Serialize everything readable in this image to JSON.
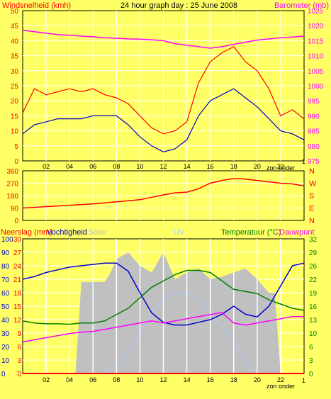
{
  "chart_data": [
    {
      "type": "line",
      "panel": "wind-barometer",
      "title": "24 hour graph day : 25 June 2008",
      "left_axis_label": "Windsnelheid (kmh)",
      "right_axis_label": "Barometer (mb)",
      "left_ylim": [
        0,
        50
      ],
      "left_ticks": [
        "0",
        "5",
        "10",
        "15",
        "20",
        "25",
        "30",
        "35",
        "40",
        "45",
        "50"
      ],
      "right_ylim": [
        975,
        1025
      ],
      "right_ticks": [
        "975",
        "980",
        "985",
        "990",
        "995",
        "1000",
        "1005",
        "1010",
        "1015",
        "1020",
        "1025"
      ],
      "x_ticks": [
        "02",
        "04",
        "06",
        "08",
        "10",
        "12",
        "14",
        "16",
        "18",
        "20",
        "22"
      ],
      "x_note": "zon onder",
      "x_end_label": "1",
      "colors": {
        "gust": "#ff0000",
        "average": "#0000cc",
        "barometer": "#ff00ff",
        "left_axis": "#ff0000",
        "right_axis": "#ff00ff"
      },
      "series": [
        {
          "key": "gust",
          "x": [
            0,
            1,
            2,
            3,
            4,
            5,
            6,
            7,
            8,
            9,
            10,
            11,
            12,
            13,
            14,
            15,
            16,
            17,
            18,
            19,
            20,
            21,
            22,
            23,
            24
          ],
          "values": [
            16,
            24,
            22,
            23,
            24,
            23,
            24,
            22,
            21,
            19,
            15,
            11,
            9,
            10,
            13,
            26,
            33,
            36,
            38,
            33,
            30,
            24,
            15,
            17,
            14
          ]
        },
        {
          "key": "average",
          "x": [
            0,
            1,
            2,
            3,
            4,
            5,
            6,
            7,
            8,
            9,
            10,
            11,
            12,
            13,
            14,
            15,
            16,
            17,
            18,
            19,
            20,
            21,
            22,
            23,
            24
          ],
          "values": [
            9,
            12,
            13,
            14,
            14,
            14,
            15,
            15,
            15,
            12,
            8,
            5,
            3,
            4,
            7,
            15,
            20,
            22,
            24,
            21,
            18,
            14,
            10,
            9,
            7
          ]
        },
        {
          "key": "barometer",
          "x": [
            0,
            1,
            2,
            3,
            4,
            5,
            6,
            7,
            8,
            9,
            10,
            11,
            12,
            13,
            14,
            15,
            16,
            17,
            18,
            19,
            20,
            21,
            22,
            23,
            24
          ],
          "values": [
            1018.5,
            1018,
            1017.5,
            1017,
            1016.8,
            1016.5,
            1016.3,
            1016,
            1015.8,
            1015.6,
            1015.5,
            1015.3,
            1015,
            1014,
            1013.5,
            1013,
            1012.5,
            1013,
            1013.8,
            1014.5,
            1015.2,
            1015.6,
            1016,
            1016.2,
            1016.5
          ]
        }
      ]
    },
    {
      "type": "line",
      "panel": "wind-direction",
      "ylim": [
        0,
        360
      ],
      "left_ticks": [
        "0",
        "90",
        "180",
        "270",
        "360"
      ],
      "right_ticks": [
        "N",
        "E",
        "S",
        "W",
        "N"
      ],
      "colors": {
        "direction": "#ff0000",
        "right_axis": "#ff0000"
      },
      "series": [
        {
          "key": "direction",
          "x": [
            0,
            2,
            4,
            6,
            8,
            10,
            12,
            13,
            14,
            15,
            16,
            17,
            18,
            19,
            20,
            21,
            22,
            23,
            24
          ],
          "values": [
            90,
            100,
            110,
            120,
            135,
            150,
            185,
            200,
            205,
            230,
            270,
            290,
            305,
            300,
            290,
            280,
            270,
            265,
            250
          ]
        }
      ]
    },
    {
      "type": "line",
      "panel": "rain-humidity-temperature",
      "left_axis_label_1": "Neerslag (mm)",
      "left_axis_label_2": "Vochtigheid",
      "center_labels": [
        "Solar",
        "UV"
      ],
      "right_axis_label_1": "Temperatuur (°C)",
      "right_axis_label_2": "Dauwpunt",
      "left_ticks_rain": [
        "0",
        "3",
        "6",
        "9",
        "12",
        "15",
        "18",
        "21",
        "24",
        "27",
        "30"
      ],
      "left_ticks_humidity": [
        "0",
        "10",
        "20",
        "30",
        "40",
        "50",
        "60",
        "70",
        "80",
        "90",
        "100"
      ],
      "right_ylim": [
        0,
        32
      ],
      "right_ticks": [
        "0",
        "3",
        "6",
        "10",
        "13",
        "16",
        "19",
        "22",
        "26",
        "29",
        "32"
      ],
      "x_ticks": [
        "02",
        "04",
        "06",
        "08",
        "10",
        "12",
        "14",
        "16",
        "18",
        "20",
        "22"
      ],
      "x_note": "zon onder",
      "x_end_label": "1",
      "colors": {
        "humidity": "#0000cc",
        "temperature": "#008000",
        "dewpoint": "#ff00ff",
        "solar": "#c0c0c0",
        "uv": "#aaccff",
        "rain": "#ff0000",
        "left_axis": "#ff0000",
        "right_axis": "#008000"
      },
      "series": [
        {
          "key": "humidity",
          "x": [
            0,
            1,
            2,
            3,
            4,
            5,
            6,
            7,
            8,
            9,
            10,
            11,
            12,
            13,
            14,
            15,
            16,
            17,
            18,
            19,
            20,
            21,
            22,
            23,
            24
          ],
          "values": [
            70,
            72,
            75,
            77,
            79,
            80,
            81,
            82,
            82,
            76,
            60,
            45,
            38,
            36,
            36,
            38,
            40,
            44,
            50,
            44,
            42,
            50,
            65,
            80,
            82
          ]
        },
        {
          "key": "temperature",
          "x": [
            0,
            1,
            2,
            3,
            4,
            5,
            6,
            7,
            8,
            9,
            10,
            11,
            12,
            13,
            14,
            15,
            16,
            17,
            18,
            19,
            20,
            21,
            22,
            23,
            24
          ],
          "values": [
            12.5,
            12,
            11.8,
            11.8,
            11.7,
            12,
            12,
            12.5,
            14,
            15.5,
            18,
            20.5,
            22,
            23.5,
            24.5,
            24.5,
            24,
            22,
            20,
            19.5,
            19,
            17.5,
            16.5,
            15.5,
            15
          ]
        },
        {
          "key": "dewpoint",
          "x": [
            0,
            1,
            2,
            3,
            4,
            5,
            6,
            7,
            8,
            9,
            10,
            11,
            12,
            13,
            14,
            15,
            16,
            17,
            18,
            19,
            20,
            21,
            22,
            23,
            24
          ],
          "values": [
            7.5,
            8,
            8.5,
            9,
            9.5,
            9.8,
            10,
            10.5,
            11,
            11.5,
            12,
            12.5,
            12,
            12.5,
            13,
            13.5,
            14,
            14.5,
            12,
            11.5,
            12,
            12.5,
            13,
            13.5,
            13.5
          ]
        },
        {
          "key": "solar",
          "x": [
            0,
            4.5,
            5,
            6,
            7,
            7.5,
            8,
            9,
            10,
            11,
            12,
            13,
            14,
            15,
            16,
            17,
            18,
            19,
            20,
            21,
            21.5,
            22,
            24
          ],
          "values": [
            0,
            0,
            68,
            68,
            68,
            75,
            85,
            90,
            80,
            75,
            90,
            70,
            75,
            78,
            70,
            72,
            75,
            78,
            70,
            60,
            60,
            0,
            0
          ]
        },
        {
          "key": "uv",
          "x": [
            0,
            7,
            8,
            9,
            10,
            11,
            12,
            13,
            14,
            15,
            16,
            17,
            18,
            19,
            20,
            24
          ],
          "values": [
            0,
            0,
            5,
            15,
            30,
            45,
            55,
            60,
            60,
            55,
            45,
            35,
            25,
            10,
            0,
            0
          ]
        },
        {
          "key": "rain",
          "x": [
            0,
            24
          ],
          "values": [
            0,
            0
          ]
        }
      ]
    }
  ]
}
